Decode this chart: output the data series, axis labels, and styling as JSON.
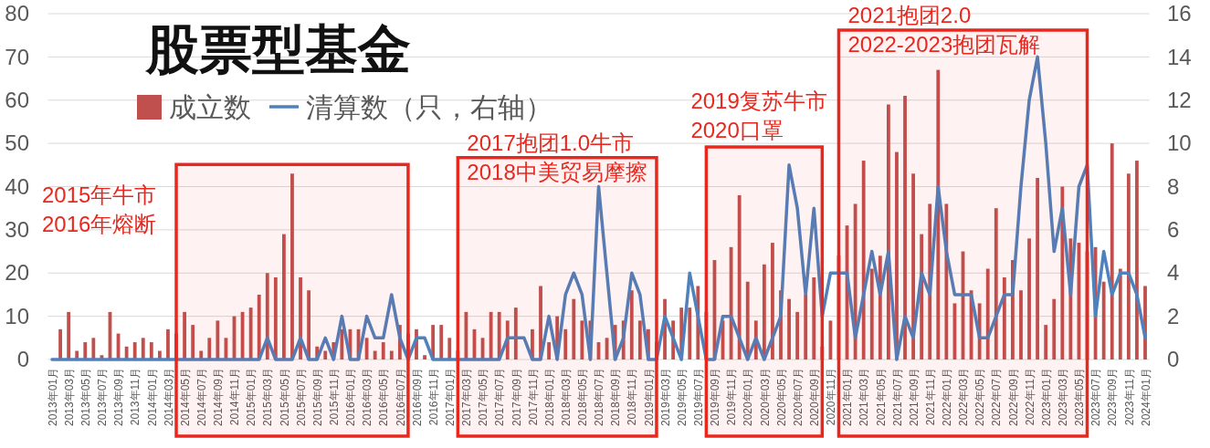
{
  "chart_data": {
    "type": "bar",
    "title": "股票型基金",
    "categories": [
      "2013年01月",
      null,
      "2013年03月",
      null,
      "2013年05月",
      null,
      "2013年07月",
      null,
      "2013年09月",
      null,
      "2013年11月",
      null,
      "2014年01月",
      null,
      "2014年03月",
      null,
      "2014年05月",
      null,
      "2014年07月",
      null,
      "2014年09月",
      null,
      "2014年11月",
      null,
      "2015年01月",
      null,
      "2015年03月",
      null,
      "2015年05月",
      null,
      "2015年07月",
      null,
      "2015年09月",
      null,
      "2015年11月",
      null,
      "2016年01月",
      null,
      "2016年03月",
      null,
      "2016年05月",
      null,
      "2016年07月",
      null,
      "2016年09月",
      null,
      "2016年11月",
      null,
      "2017年01月",
      null,
      "2017年03月",
      null,
      "2017年05月",
      null,
      "2017年07月",
      null,
      "2017年09月",
      null,
      "2017年11月",
      null,
      "2018年01月",
      null,
      "2018年03月",
      null,
      "2018年05月",
      null,
      "2018年07月",
      null,
      "2018年09月",
      null,
      "2018年11月",
      null,
      "2019年01月",
      null,
      "2019年03月",
      null,
      "2019年05月",
      null,
      "2019年07月",
      null,
      "2019年09月",
      null,
      "2019年11月",
      null,
      "2020年01月",
      null,
      "2020年03月",
      null,
      "2020年05月",
      null,
      "2020年07月",
      null,
      "2020年09月",
      null,
      "2020年11月",
      null,
      "2021年01月",
      null,
      "2021年03月",
      null,
      "2021年05月",
      null,
      "2021年07月",
      null,
      "2021年09月",
      null,
      "2021年11月",
      null,
      "2022年01月",
      null,
      "2022年03月",
      null,
      "2022年05月",
      null,
      "2022年07月",
      null,
      "2022年09月",
      null,
      "2022年11月",
      null,
      "2023年01月",
      null,
      "2023年03月",
      null,
      "2023年05月",
      null,
      "2023年07月",
      null,
      "2023年09月",
      null,
      "2023年11月",
      null,
      "2024年01月"
    ],
    "series": [
      {
        "name": "成立数",
        "color": "#c0504d",
        "values": [
          0,
          7,
          11,
          2,
          4,
          5,
          1,
          11,
          6,
          3,
          4,
          5,
          4,
          2,
          7,
          6,
          11,
          8,
          2,
          5,
          9,
          5,
          10,
          11,
          12,
          15,
          20,
          19,
          29,
          43,
          19,
          16,
          3,
          2,
          4,
          7,
          7,
          7,
          5,
          2,
          4,
          2,
          8,
          6,
          7,
          1,
          8,
          8,
          5,
          2,
          11,
          7,
          5,
          11,
          11,
          9,
          12,
          0,
          7,
          17,
          4,
          10,
          7,
          14,
          9,
          9,
          4,
          5,
          8,
          9,
          16,
          9,
          7,
          4,
          14,
          9,
          12,
          12,
          17,
          11,
          23,
          9,
          26,
          38,
          18,
          9,
          22,
          27,
          16,
          14,
          11,
          15,
          19,
          3,
          9,
          24,
          31,
          36,
          46,
          21,
          24,
          59,
          48,
          61,
          43,
          29,
          36,
          67,
          36,
          13,
          25,
          16,
          13,
          21,
          35,
          19,
          23,
          16,
          28,
          42,
          8,
          14,
          40,
          28,
          27,
          25,
          26,
          18,
          50,
          21,
          43,
          46,
          17
        ]
      },
      {
        "name": "清算数（只，右轴）",
        "type": "line",
        "axis": "y2",
        "color": "#4f81bd",
        "values": [
          0,
          0,
          0,
          0,
          0,
          0,
          0,
          0,
          0,
          0,
          0,
          0,
          0,
          0,
          0,
          0,
          0,
          0,
          0,
          0,
          0,
          0,
          0,
          0,
          0,
          0,
          1,
          0,
          0,
          0,
          1,
          0,
          0,
          1,
          0,
          2,
          0,
          0,
          2,
          1,
          1,
          3,
          1,
          0,
          1,
          1,
          0,
          0,
          0,
          0,
          0,
          0,
          0,
          0,
          0,
          1,
          1,
          1,
          0,
          0,
          2,
          0,
          3,
          4,
          3,
          0,
          8,
          4,
          0,
          1,
          4,
          3,
          0,
          0,
          2,
          1,
          0,
          4,
          2,
          0,
          0,
          2,
          2,
          1,
          0,
          1,
          0,
          1,
          2,
          9,
          7,
          3,
          7,
          2,
          4,
          4,
          4,
          1,
          3,
          5,
          3,
          5,
          0,
          2,
          1,
          4,
          3,
          8,
          5,
          3,
          3,
          3,
          1,
          1,
          2,
          3,
          3,
          8,
          12,
          14,
          10,
          5,
          7,
          3,
          8,
          9,
          2,
          5,
          3,
          4,
          4,
          3,
          1
        ]
      }
    ],
    "ylim": [
      0,
      80
    ],
    "yticks": [
      0,
      10,
      20,
      30,
      40,
      50,
      60,
      70,
      80
    ],
    "y2lim": [
      0,
      16
    ],
    "y2ticks": [
      0,
      2,
      4,
      6,
      8,
      10,
      12,
      14,
      16
    ],
    "grid": "y",
    "legend": "top left",
    "bands": [
      {
        "axis": "x",
        "from": "2014年05月",
        "to": "2016年07月",
        "label": "2015年牛市\n2016年熔断",
        "color": "#e8281e"
      },
      {
        "axis": "x",
        "from": "2017年03月",
        "to": "2019年01月",
        "label": "2017抱团1.0牛市\n2018中美贸易摩擦",
        "color": "#e8281e"
      },
      {
        "axis": "x",
        "from": "2019年09月",
        "to": "2020年09月",
        "label": "2019复苏牛市\n2020口罩",
        "color": "#e8281e"
      },
      {
        "axis": "x",
        "from": "2021年01月",
        "to": "2023年05月",
        "label": "2021抱团2.0\n2022-2023抱团瓦解",
        "color": "#e8281e"
      }
    ]
  }
}
